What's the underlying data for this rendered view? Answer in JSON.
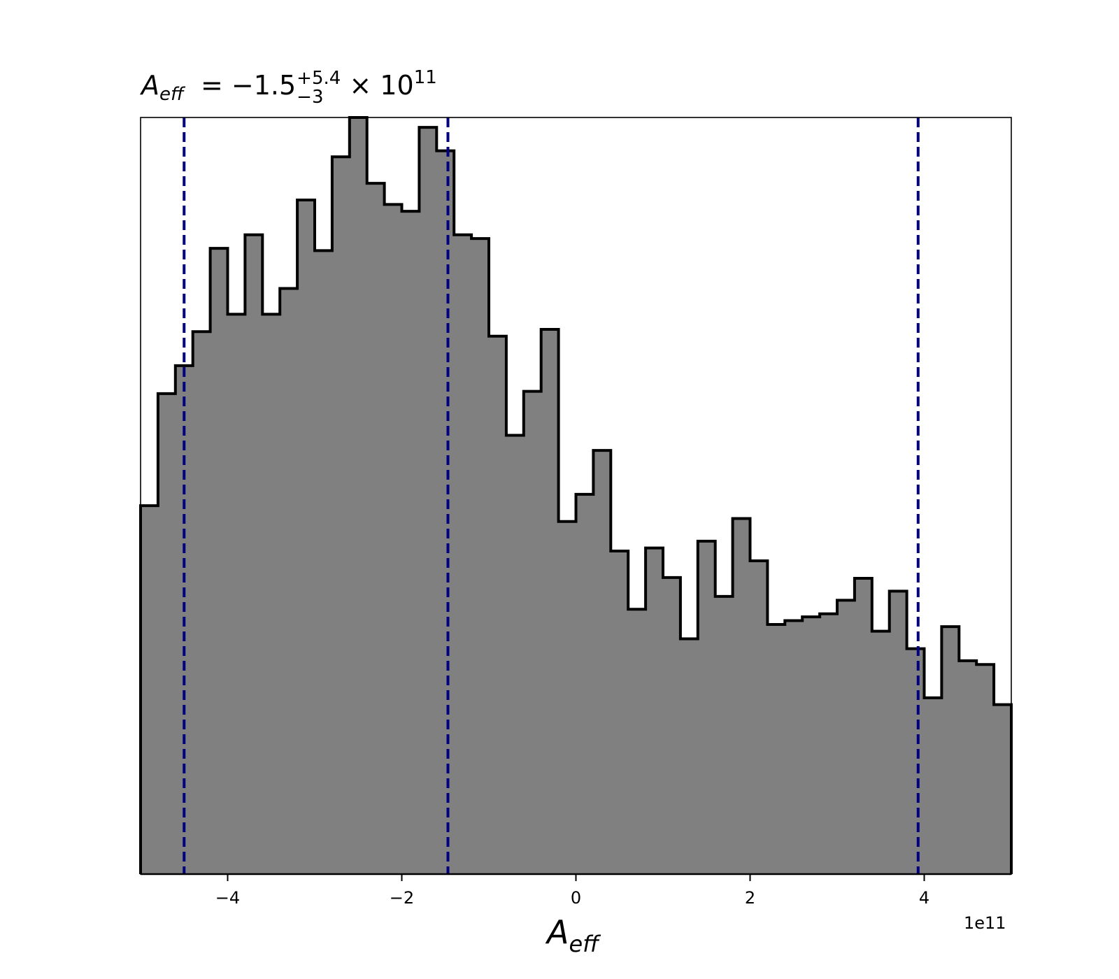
{
  "chart_data": {
    "type": "bar",
    "title": {
      "symbol": "A",
      "subscript": "eff",
      "equals": "=",
      "value": "−1.5",
      "upper": "+5.4",
      "lower": "−3",
      "times": "×",
      "base": "10",
      "exponent": "11"
    },
    "xlabel": {
      "symbol": "A",
      "subscript": "eff"
    },
    "x_offset_label": "1e11",
    "xlim": [
      -5,
      5
    ],
    "ylim": [
      0,
      100
    ],
    "xticks": [
      -4,
      -2,
      0,
      2,
      4
    ],
    "xtick_labels": [
      "−4",
      "−2",
      "0",
      "2",
      "4"
    ],
    "y_axis_shown": false,
    "grid": false,
    "fill_color": "#808080",
    "edge_color": "#000000",
    "line_color": "#000080",
    "bin_edges": [
      -5.0,
      -4.8,
      -4.6,
      -4.4,
      -4.2,
      -4.0,
      -3.8,
      -3.6,
      -3.4,
      -3.2,
      -3.0,
      -2.8,
      -2.6,
      -2.4,
      -2.2,
      -2.0,
      -1.8,
      -1.6,
      -1.4,
      -1.2,
      -1.0,
      -0.8,
      -0.6,
      -0.4,
      -0.2,
      0.0,
      0.2,
      0.4,
      0.6,
      0.8,
      1.0,
      1.2,
      1.4,
      1.6,
      1.8,
      2.0,
      2.2,
      2.4,
      2.6,
      2.8,
      3.0,
      3.2,
      3.4,
      3.6,
      3.8,
      4.0,
      4.2,
      4.4,
      4.6,
      4.8,
      5.0
    ],
    "counts": [
      48.7,
      63.5,
      67.2,
      71.7,
      82.7,
      74.0,
      84.5,
      74.0,
      77.4,
      89.1,
      82.4,
      94.8,
      100.0,
      91.3,
      88.5,
      87.6,
      98.7,
      95.6,
      84.5,
      84.0,
      71.1,
      58.0,
      63.8,
      72.0,
      46.6,
      50.2,
      56.0,
      42.7,
      35.0,
      43.1,
      39.2,
      31.1,
      44.0,
      36.7,
      47.0,
      41.4,
      33.0,
      33.5,
      34.0,
      34.4,
      36.2,
      39.1,
      32.1,
      37.4,
      29.8,
      23.3,
      32.7,
      28.2,
      27.7,
      22.4
    ],
    "vlines": [
      -4.5,
      -1.47,
      3.93
    ],
    "vline_style": "dashed"
  }
}
